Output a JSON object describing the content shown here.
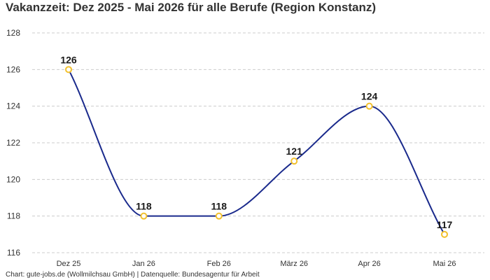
{
  "title": "Vakanzzeit: Dez 2025 - Mai 2026 für alle Berufe (Region Konstanz)",
  "footer": "Chart: gute-jobs.de (Wollmilchsau GmbH) | Datenquelle: Bundesagentur für Arbeit",
  "colors": {
    "line": "#1a2a8c",
    "marker": "#f2c12e",
    "grid": "#cccccc"
  },
  "chart_data": {
    "type": "line",
    "title": "Vakanzzeit: Dez 2025 - Mai 2026 für alle Berufe (Region Konstanz)",
    "categories": [
      "Dez 25",
      "Jan 26",
      "Feb 26",
      "März 26",
      "Apr 26",
      "Mai 26"
    ],
    "series": [
      {
        "values": [
          126,
          118,
          118,
          121,
          124,
          117
        ]
      }
    ],
    "data_labels": [
      "126",
      "118",
      "118",
      "121",
      "124",
      "117"
    ],
    "ylim": [
      116,
      128
    ],
    "yticks": [
      "116",
      "118",
      "120",
      "122",
      "124",
      "126",
      "128"
    ],
    "grid": "horizontal dashed",
    "xlabel": "",
    "ylabel": ""
  }
}
